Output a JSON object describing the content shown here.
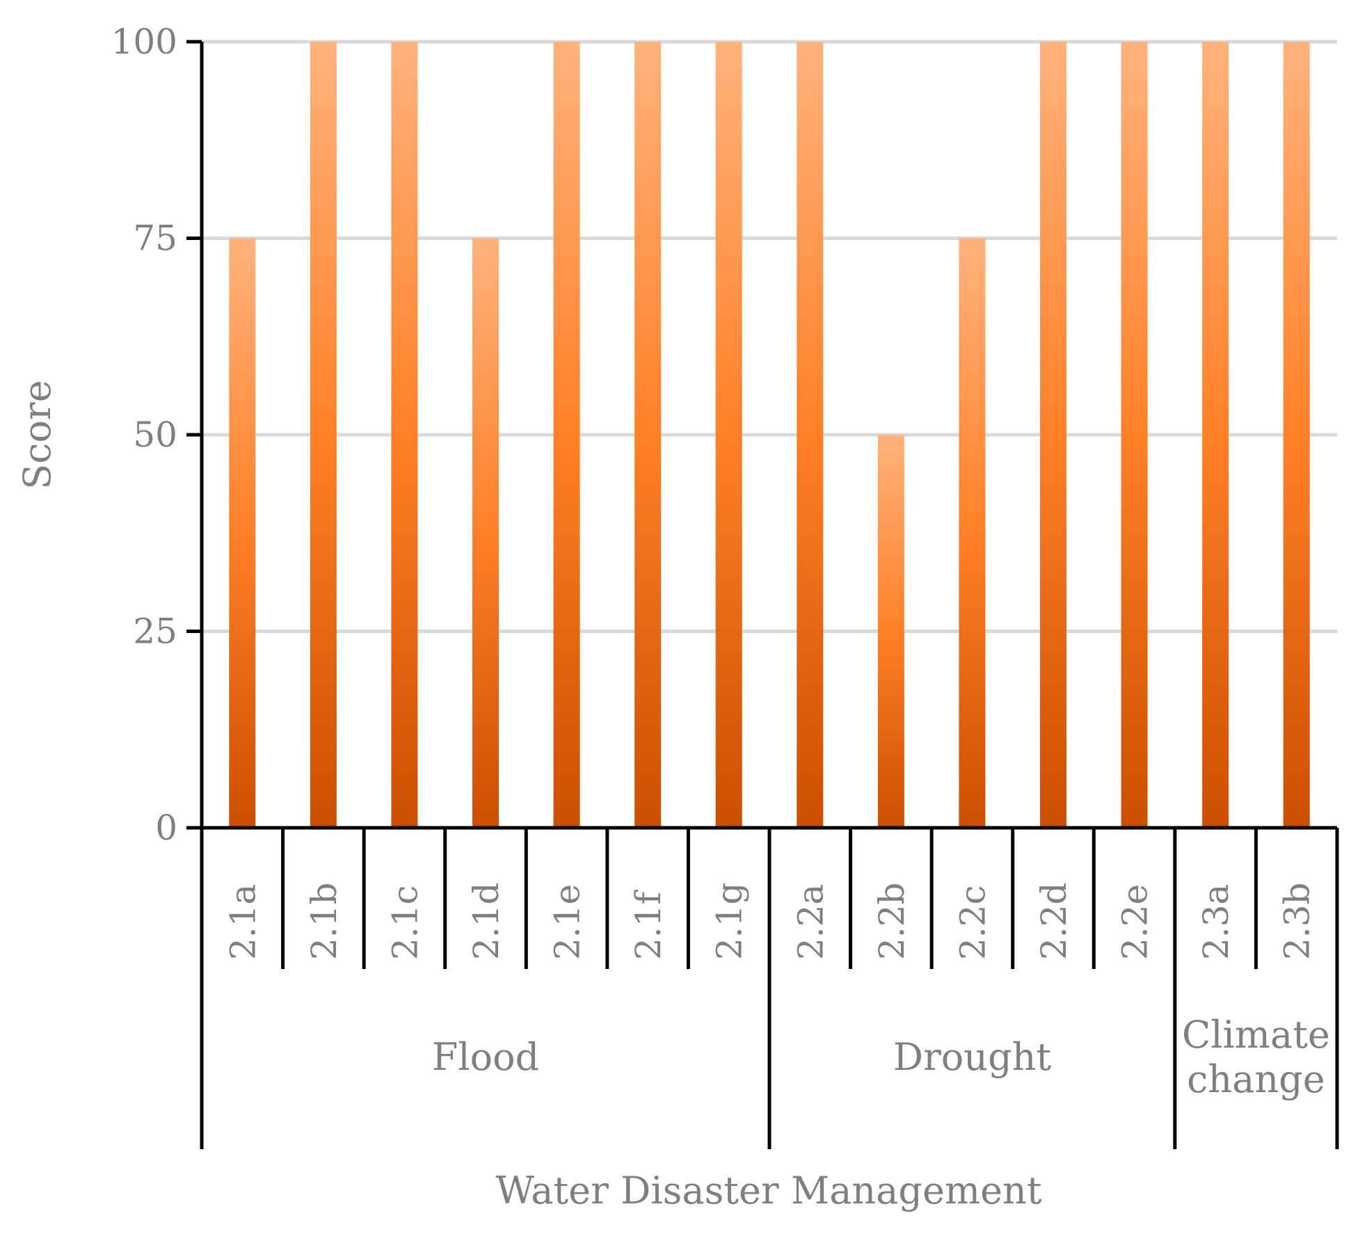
{
  "chart_data": {
    "type": "bar",
    "title": "",
    "xlabel": "Water Disaster Management",
    "ylabel": "Score",
    "ylim": [
      0,
      100
    ],
    "yticks": [
      "0",
      "25",
      "50",
      "75",
      "100"
    ],
    "grid": "horizontal",
    "categories": [
      "2.1a",
      "2.1b",
      "2.1c",
      "2.1d",
      "2.1e",
      "2.1f",
      "2.1g",
      "2.2a",
      "2.2b",
      "2.2c",
      "2.2d",
      "2.2e",
      "2.3a",
      "2.3b"
    ],
    "values": [
      75,
      100,
      100,
      75,
      100,
      100,
      100,
      100,
      50,
      75,
      100,
      100,
      100,
      100
    ],
    "groups": [
      {
        "label_lines": [
          "Flood"
        ],
        "count": 7
      },
      {
        "label_lines": [
          "Drought"
        ],
        "count": 5
      },
      {
        "label_lines": [
          "Climate",
          "change"
        ],
        "count": 2
      }
    ],
    "colors": {
      "bar_top": "#ffb27d",
      "bar_mid": "#ff8027",
      "bar_bottom": "#cc4e00",
      "grid": "#d9d9d9",
      "axis": "#000000",
      "text": "#7f7f7f"
    }
  }
}
